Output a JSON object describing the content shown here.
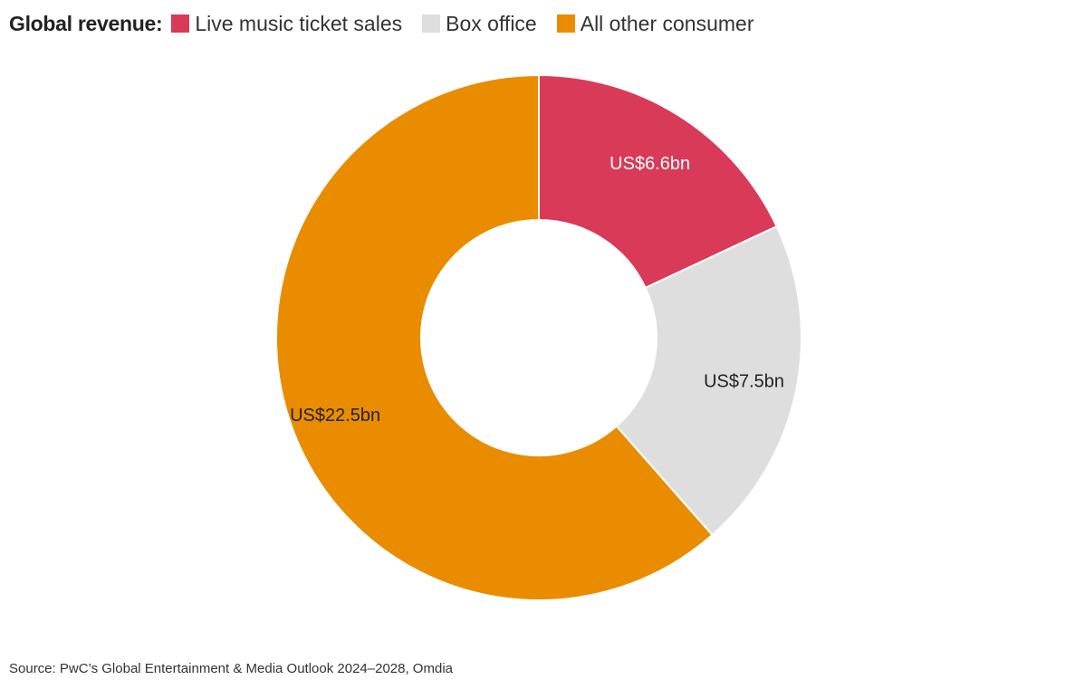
{
  "legend": {
    "title": "Global revenue:"
  },
  "source": "Source: PwC’s Global Entertainment & Media Outlook 2024–2028, Omdia",
  "chart_data": {
    "type": "pie",
    "donut": true,
    "legend_position": "top-left",
    "unit": "US$bn",
    "series": [
      {
        "name": "Live music ticket sales",
        "value": 6.6,
        "label": "US$6.6bn",
        "color": "#d93a57",
        "label_color": "#ffffff"
      },
      {
        "name": "Box office",
        "value": 7.5,
        "label": "US$7.5bn",
        "color": "#dedede",
        "label_color": "#222222"
      },
      {
        "name": "All other consumer",
        "value": 22.5,
        "label": "US$22.5bn",
        "color": "#e98c00",
        "label_color": "#222222"
      }
    ]
  }
}
